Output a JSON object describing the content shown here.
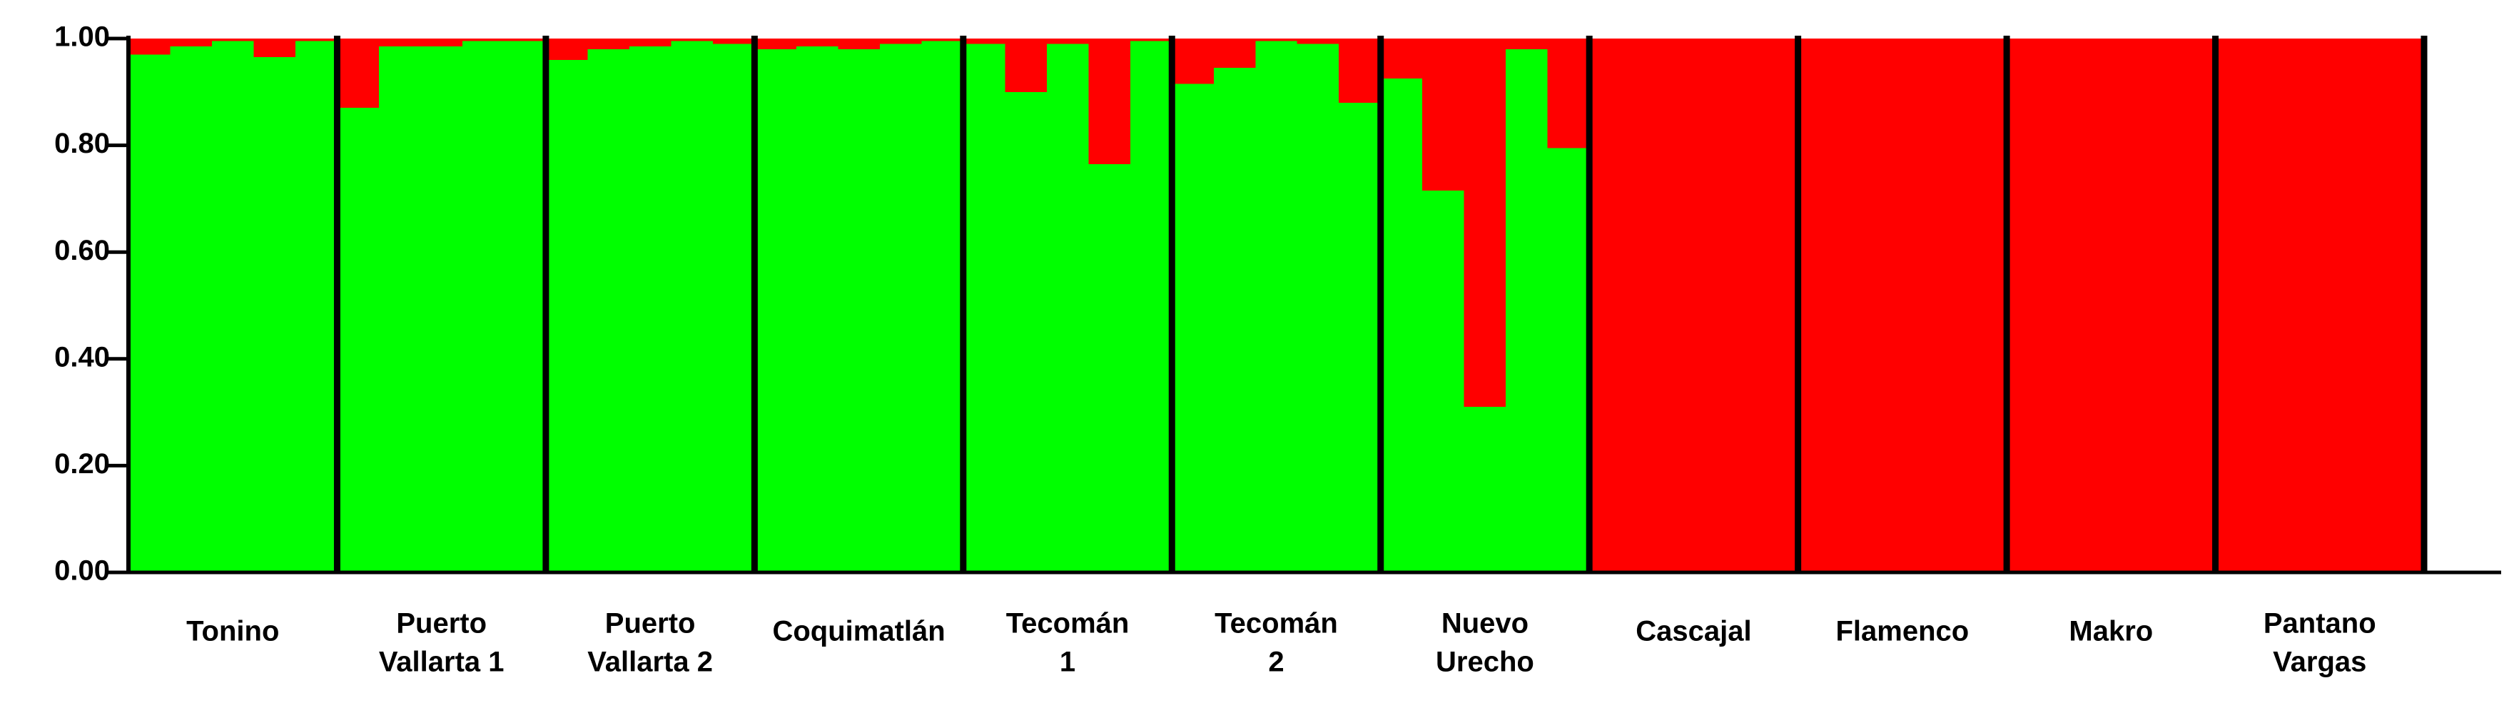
{
  "chart_data": {
    "type": "structure",
    "ylim": [
      0,
      1
    ],
    "yticks": [
      {
        "value": 0,
        "label": "0.00"
      },
      {
        "value": 0.2,
        "label": "0.20"
      },
      {
        "value": 0.4,
        "label": "0.40"
      },
      {
        "value": 0.6,
        "label": "0.60"
      },
      {
        "value": 0.8,
        "label": "0.80"
      },
      {
        "value": 1,
        "label": "1.00"
      }
    ],
    "colors": [
      "#00ff00",
      "#ff0000"
    ],
    "groups": [
      {
        "label": [
          "Tonino"
        ],
        "values": [
          [
            0.97,
            0.03
          ],
          [
            0.985,
            0.015
          ],
          [
            0.995,
            0.005
          ],
          [
            0.965,
            0.035
          ],
          [
            0.995,
            0.005
          ]
        ]
      },
      {
        "label": [
          "Puerto",
          "Vallarta 1"
        ],
        "values": [
          [
            0.87,
            0.13
          ],
          [
            0.985,
            0.015
          ],
          [
            0.985,
            0.015
          ],
          [
            0.995,
            0.005
          ],
          [
            0.995,
            0.005
          ]
        ]
      },
      {
        "label": [
          "Puerto",
          "Vallarta 2"
        ],
        "values": [
          [
            0.96,
            0.04
          ],
          [
            0.98,
            0.02
          ],
          [
            0.985,
            0.015
          ],
          [
            0.995,
            0.005
          ],
          [
            0.99,
            0.01
          ]
        ]
      },
      {
        "label": [
          "Coquimatlán"
        ],
        "values": [
          [
            0.98,
            0.02
          ],
          [
            0.985,
            0.015
          ],
          [
            0.98,
            0.02
          ],
          [
            0.99,
            0.01
          ],
          [
            0.995,
            0.005
          ]
        ]
      },
      {
        "label": [
          "Tecomán",
          "1"
        ],
        "values": [
          [
            0.99,
            0.01
          ],
          [
            0.9,
            0.1
          ],
          [
            0.99,
            0.01
          ],
          [
            0.765,
            0.235
          ],
          [
            0.995,
            0.005
          ]
        ]
      },
      {
        "label": [
          "Tecomán",
          "2"
        ],
        "values": [
          [
            0.915,
            0.085
          ],
          [
            0.945,
            0.055
          ],
          [
            0.995,
            0.005
          ],
          [
            0.99,
            0.01
          ],
          [
            0.88,
            0.12
          ]
        ]
      },
      {
        "label": [
          "Nuevo",
          "Urecho"
        ],
        "values": [
          [
            0.925,
            0.075
          ],
          [
            0.715,
            0.285
          ],
          [
            0.31,
            0.69
          ],
          [
            0.98,
            0.02
          ],
          [
            0.795,
            0.205
          ]
        ]
      },
      {
        "label": [
          "Cascajal"
        ],
        "values": [
          [
            0,
            1
          ],
          [
            0,
            1
          ],
          [
            0,
            1
          ],
          [
            0,
            1
          ],
          [
            0,
            1
          ]
        ]
      },
      {
        "label": [
          "Flamenco"
        ],
        "values": [
          [
            0,
            1
          ],
          [
            0,
            1
          ],
          [
            0,
            1
          ],
          [
            0,
            1
          ],
          [
            0,
            1
          ]
        ]
      },
      {
        "label": [
          "Makro"
        ],
        "values": [
          [
            0,
            1
          ],
          [
            0,
            1
          ],
          [
            0,
            1
          ],
          [
            0,
            1
          ],
          [
            0,
            1
          ]
        ]
      },
      {
        "label": [
          "Pantano",
          "Vargas"
        ],
        "values": [
          [
            0,
            1
          ],
          [
            0,
            1
          ],
          [
            0,
            1
          ],
          [
            0,
            1
          ],
          [
            0,
            1
          ]
        ]
      }
    ]
  }
}
